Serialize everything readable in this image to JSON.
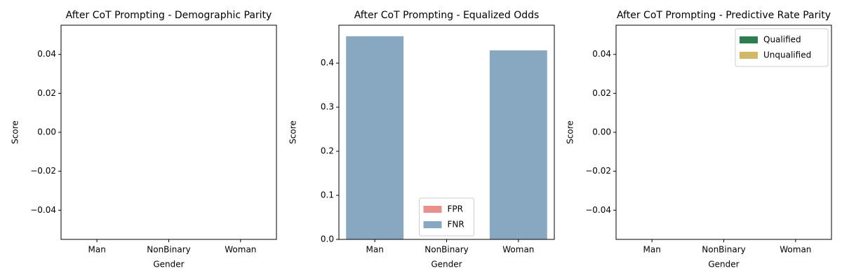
{
  "chart_data": [
    {
      "type": "bar",
      "title": "After CoT Prompting - Demographic Parity",
      "xlabel": "Gender",
      "ylabel": "Score",
      "categories": [
        "Man",
        "NonBinary",
        "Woman"
      ],
      "values": [
        0,
        0,
        0
      ],
      "color": "#5b8fc7",
      "ylim": [
        -0.055,
        0.055
      ],
      "yticks": [
        -0.04,
        -0.02,
        0.0,
        0.02,
        0.04
      ]
    },
    {
      "type": "bar",
      "title": "After CoT Prompting - Equalized Odds",
      "xlabel": "Gender",
      "ylabel": "Score",
      "categories": [
        "Man",
        "NonBinary",
        "Woman"
      ],
      "series": [
        {
          "name": "FPR",
          "color": "#e8908c",
          "values": [
            0,
            0,
            0
          ]
        },
        {
          "name": "FNR",
          "color": "#88a8c2",
          "values": [
            0.461,
            0,
            0.429
          ]
        }
      ],
      "ylim": [
        0,
        0.486
      ],
      "yticks": [
        0.0,
        0.1,
        0.2,
        0.3,
        0.4
      ],
      "legend": "lower center"
    },
    {
      "type": "bar",
      "title": "After CoT Prompting - Predictive Rate Parity",
      "xlabel": "Gender",
      "ylabel": "Score",
      "categories": [
        "Man",
        "NonBinary",
        "Woman"
      ],
      "series": [
        {
          "name": "Qualified",
          "color": "#2e7d4f",
          "values": [
            0,
            0,
            0
          ]
        },
        {
          "name": "Unqualified",
          "color": "#d4b86a",
          "values": [
            0,
            0,
            0
          ]
        }
      ],
      "ylim": [
        -0.055,
        0.055
      ],
      "yticks": [
        -0.04,
        -0.02,
        0.0,
        0.02,
        0.04
      ],
      "legend": "upper right"
    }
  ]
}
